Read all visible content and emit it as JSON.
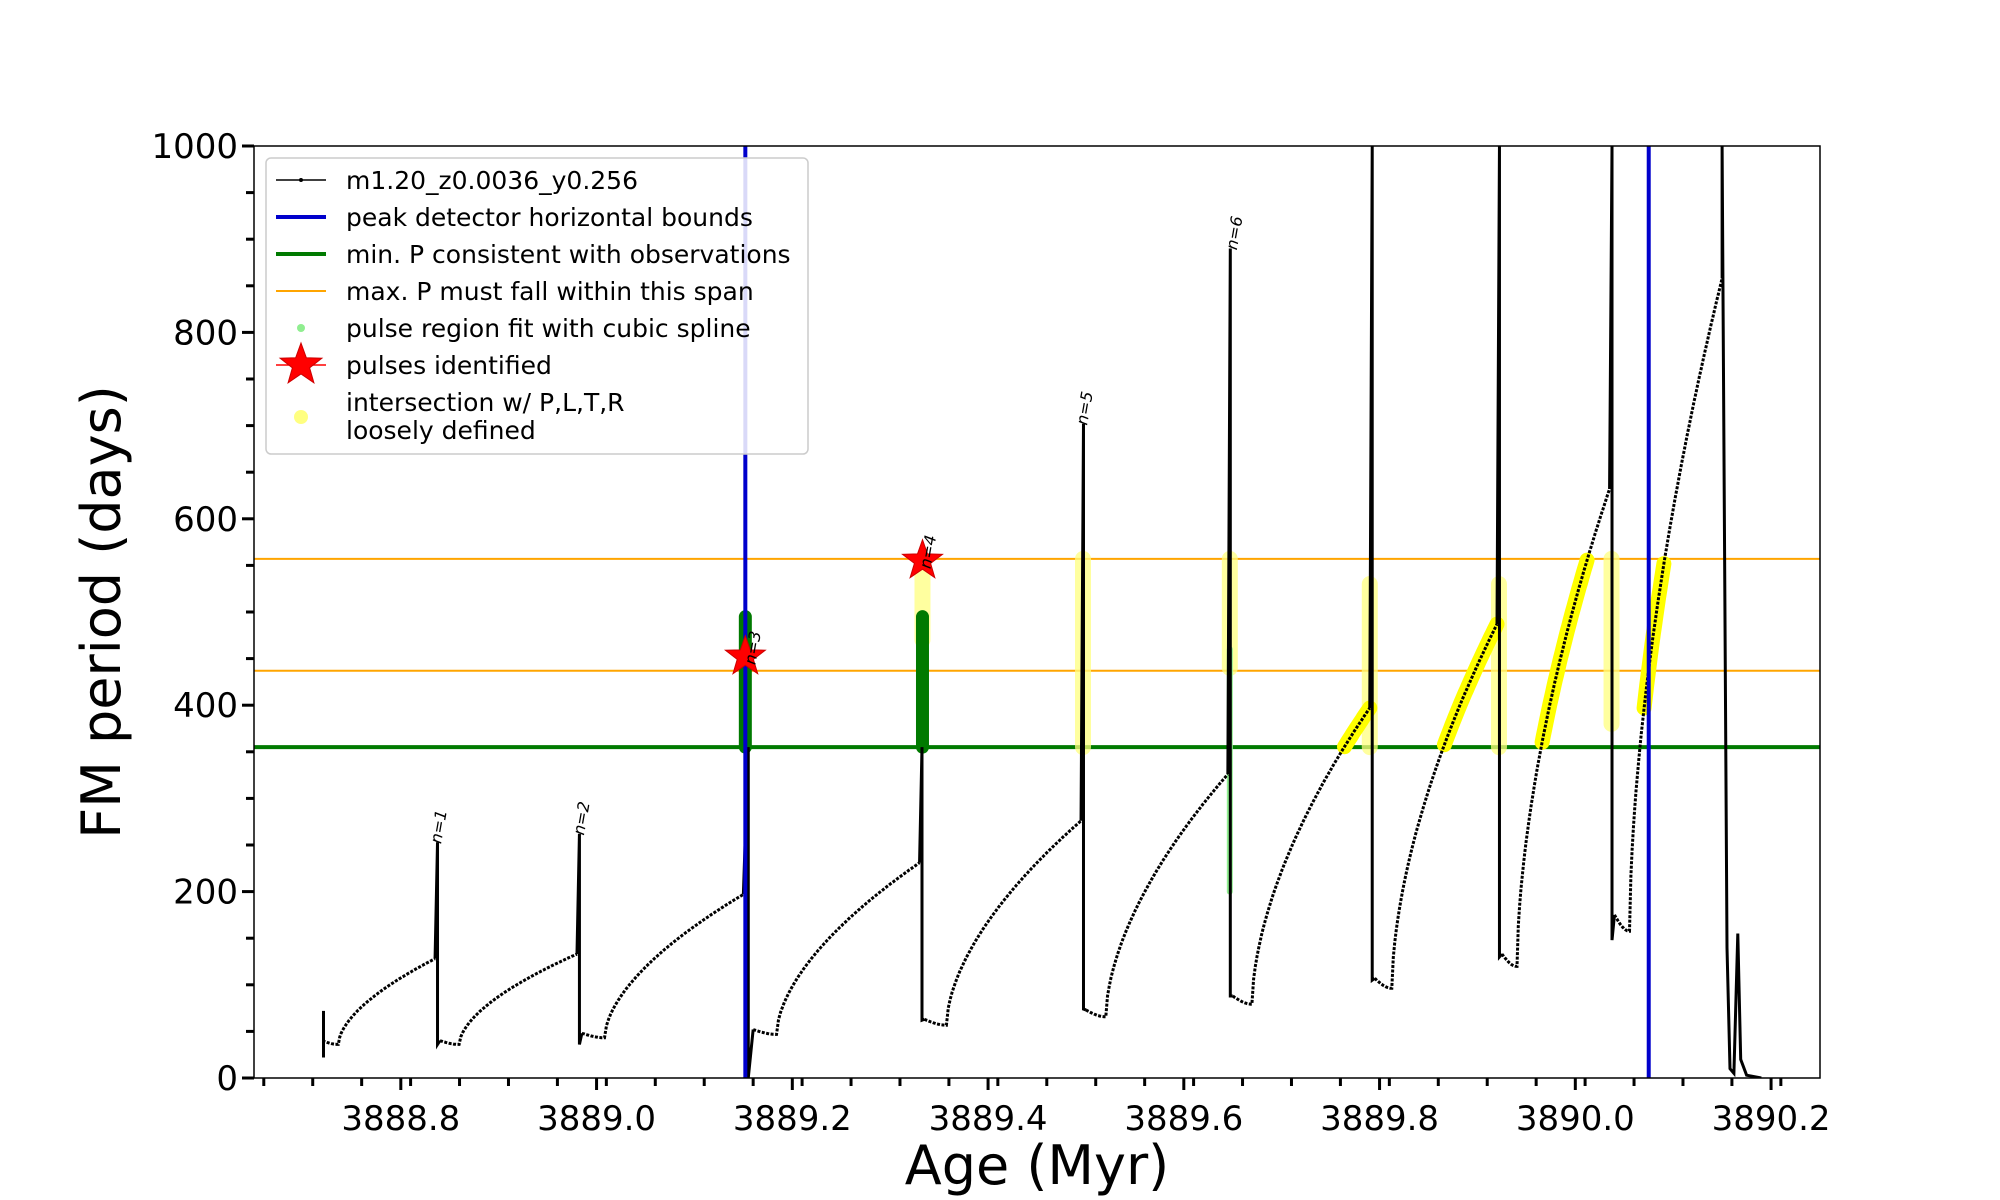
{
  "chart_data": {
    "type": "line",
    "title": "",
    "xlabel": "Age (Myr)",
    "ylabel": "FM period (days)",
    "xlim": [
      3888.65,
      3890.25
    ],
    "ylim": [
      0,
      1000
    ],
    "grid": false,
    "xticks": [
      {
        "value": 3888.8,
        "label": "3888.8"
      },
      {
        "value": 3889.0,
        "label": "3889.0"
      },
      {
        "value": 3889.2,
        "label": "3889.2"
      },
      {
        "value": 3889.4,
        "label": "3889.4"
      },
      {
        "value": 3889.6,
        "label": "3889.6"
      },
      {
        "value": 3889.8,
        "label": "3889.8"
      },
      {
        "value": 3890.0,
        "label": "3890.0"
      },
      {
        "value": 3890.2,
        "label": "3890.2"
      }
    ],
    "yticks": [
      {
        "value": 0,
        "label": "0"
      },
      {
        "value": 200,
        "label": "200"
      },
      {
        "value": 400,
        "label": "400"
      },
      {
        "value": 600,
        "label": "600"
      },
      {
        "value": 800,
        "label": "800"
      },
      {
        "value": 1000,
        "label": "1000"
      }
    ],
    "legend": {
      "placement": "top-left",
      "entries": [
        {
          "label": "m1.20_z0.0036_y0.256",
          "kind": "line-marker",
          "color": "#000000"
        },
        {
          "label": "peak detector horizontal bounds",
          "kind": "line",
          "color": "#0000cc"
        },
        {
          "label": "min. P consistent with observations",
          "kind": "line",
          "color": "#007a00"
        },
        {
          "label": "max. P must fall within this span",
          "kind": "thin-line",
          "color": "#ffa500"
        },
        {
          "label": "pulse region fit with cubic spline",
          "kind": "dot",
          "color": "#90ee90"
        },
        {
          "label": "pulses identified",
          "kind": "star",
          "color": "#ff0000"
        },
        {
          "label": "intersection w/ P,L,T,R",
          "label2": "loosely defined",
          "kind": "dot",
          "color": "#ffff80"
        }
      ]
    },
    "reference_lines": {
      "vertical_blue": [
        3889.152,
        3890.075
      ],
      "horizontal_green": 355,
      "horizontal_orange": [
        437,
        557
      ]
    },
    "series": [
      {
        "name": "m1.20_z0.0036_y0.256",
        "color": "#000000",
        "segments": [
          {
            "start": 3888.72,
            "end": 3888.835,
            "y0": 40,
            "peak": 128,
            "spike": 253,
            "dip": 36
          },
          {
            "start": 3888.84,
            "end": 3888.98,
            "y0": 40,
            "peak": 133,
            "spike": 262,
            "dip": 36
          },
          {
            "start": 3888.985,
            "end": 3889.15,
            "y0": 48,
            "peak": 197,
            "spike": 355,
            "dip": 0
          },
          {
            "start": 3889.16,
            "end": 3889.33,
            "y0": 52,
            "peak": 231,
            "spike": 355,
            "dip": 62
          },
          {
            "start": 3889.335,
            "end": 3889.495,
            "y0": 63,
            "peak": 276,
            "spike": 702,
            "dip": 74
          },
          {
            "start": 3889.5,
            "end": 3889.645,
            "y0": 73,
            "peak": 326,
            "spike": 890,
            "dip": 88
          },
          {
            "start": 3889.65,
            "end": 3889.79,
            "y0": 88,
            "peak": 397,
            "spike": 1000,
            "dip": 105
          },
          {
            "start": 3889.795,
            "end": 3889.92,
            "y0": 107,
            "peak": 487,
            "spike": 1000,
            "dip": 130
          },
          {
            "start": 3889.925,
            "end": 3890.035,
            "y0": 133,
            "peak": 632,
            "spike": 1000,
            "dip": 148
          },
          {
            "start": 3890.04,
            "end": 3890.15,
            "y0": 175,
            "peak": 858,
            "spike": 1000,
            "dip": 140
          }
        ],
        "tail": [
          {
            "x": 3890.15,
            "y": 1000
          },
          {
            "x": 3890.155,
            "y": 140
          },
          {
            "x": 3890.158,
            "y": 10
          },
          {
            "x": 3890.162,
            "y": 5
          },
          {
            "x": 3890.166,
            "y": 155
          },
          {
            "x": 3890.169,
            "y": 20
          },
          {
            "x": 3890.175,
            "y": 3
          },
          {
            "x": 3890.19,
            "y": 0
          }
        ],
        "start_spike": {
          "x": 3888.721,
          "y_low": 22,
          "y_high": 72
        }
      }
    ],
    "spline_fit_regions": [
      {
        "x": 3889.152,
        "y_low": 355,
        "y_high": 495,
        "color": "#007a00"
      },
      {
        "x": 3889.333,
        "y_low": 355,
        "y_high": 495,
        "color": "#007a00"
      },
      {
        "x": 3889.647,
        "y_low": 200,
        "y_high": 460,
        "color": "#90ee90"
      }
    ],
    "intersection_regions": [
      {
        "kind": "vertical",
        "x": 3889.333,
        "y_low": 470,
        "y_high": 557
      },
      {
        "kind": "vertical",
        "x": 3889.497,
        "y_low": 355,
        "y_high": 557
      },
      {
        "kind": "vertical",
        "x": 3889.647,
        "y_low": 440,
        "y_high": 557
      },
      {
        "kind": "vertical",
        "x": 3889.79,
        "y_low": 355,
        "y_high": 530
      },
      {
        "kind": "vertical",
        "x": 3889.922,
        "y_low": 355,
        "y_high": 530
      },
      {
        "kind": "vertical",
        "x": 3890.037,
        "y_low": 380,
        "y_high": 557
      },
      {
        "kind": "curve",
        "segment": 6,
        "y_low": 355,
        "y_high": 397
      },
      {
        "kind": "curve",
        "segment": 7,
        "y_low": 355,
        "y_high": 487
      },
      {
        "kind": "curve",
        "segment": 8,
        "y_low": 355,
        "y_high": 557
      },
      {
        "kind": "curve",
        "segment": 9,
        "y_low": 390,
        "y_high": 557
      }
    ],
    "pulses_identified": [
      {
        "x": 3889.152,
        "y": 452
      },
      {
        "x": 3889.333,
        "y": 555
      }
    ],
    "pulse_labels": [
      {
        "x": 3888.837,
        "y": 253,
        "label": "n=1"
      },
      {
        "x": 3888.983,
        "y": 262,
        "label": "n=2"
      },
      {
        "x": 3889.158,
        "y": 445,
        "label": "n=3"
      },
      {
        "x": 3889.337,
        "y": 548,
        "label": "n=4"
      },
      {
        "x": 3889.497,
        "y": 702,
        "label": "n=5"
      },
      {
        "x": 3889.65,
        "y": 890,
        "label": "n=6"
      }
    ]
  }
}
